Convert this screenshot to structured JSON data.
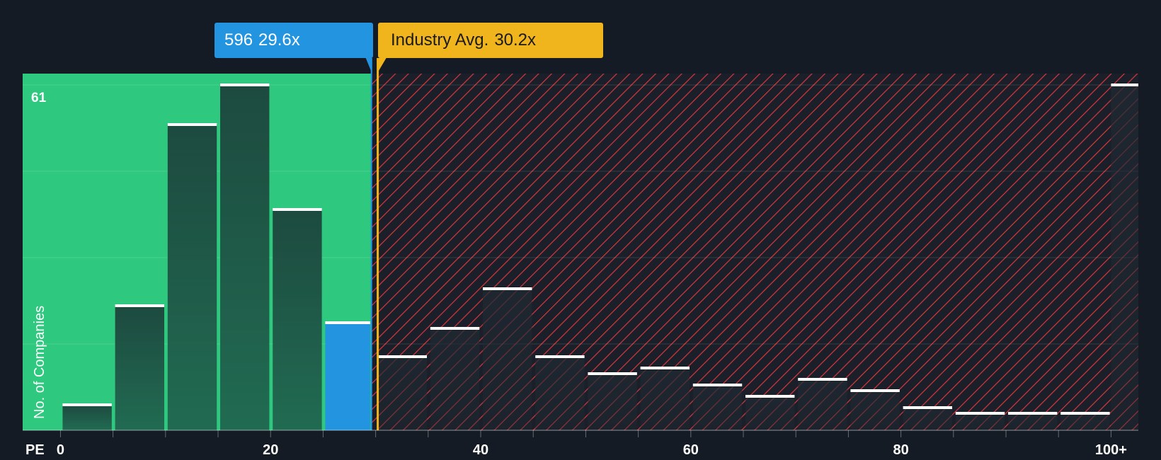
{
  "chart_data": {
    "type": "bar",
    "title": "",
    "xlabel": "PE",
    "ylabel": "No. of Companies",
    "x_tick_labels": [
      "0",
      "20",
      "40",
      "60",
      "80",
      "100+"
    ],
    "x_ticks": [
      0,
      20,
      40,
      60,
      80,
      100
    ],
    "ymax_label": "61",
    "xlim": [
      -3.6,
      102.6
    ],
    "ylim": [
      0,
      63
    ],
    "bin_width": 5,
    "bins_start": [
      0,
      5,
      10,
      15,
      20,
      25,
      30,
      35,
      40,
      45,
      50,
      55,
      60,
      65,
      70,
      75,
      80,
      85,
      90,
      95,
      100
    ],
    "values": [
      4.5,
      22,
      54,
      61,
      39,
      19,
      13,
      18,
      25,
      13,
      10,
      11,
      8,
      6,
      9,
      7,
      4,
      3,
      3,
      3,
      61
    ],
    "company": {
      "ticker": "596",
      "pe_label": "29.6x",
      "pe": 29.6
    },
    "industry": {
      "label": "Industry Avg.",
      "pe_label": "30.2x",
      "pe": 30.2
    },
    "colors": {
      "background": "#151b24",
      "undervalued_zone": "#2ec97e",
      "overvalued_hatch": "#d8383d",
      "bar_dark": "#1d4a3f",
      "company_bar": "#2394e0",
      "industry_line": "#f0b41c"
    }
  }
}
